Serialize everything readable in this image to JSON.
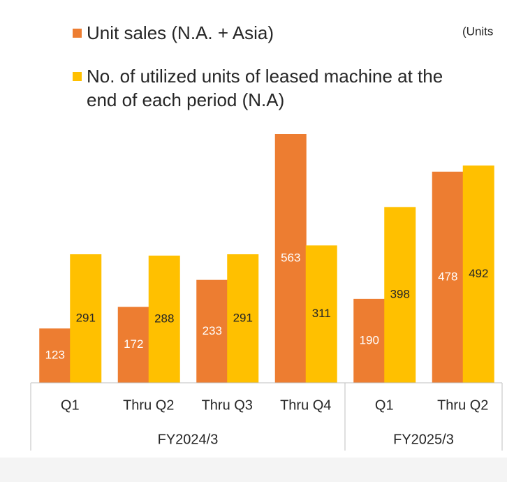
{
  "chart_data": {
    "type": "bar",
    "unit_note": "(Units",
    "groups": [
      {
        "label": "FY2024/3",
        "categories": [
          "Q1",
          "Thru Q2",
          "Thru Q3",
          "Thru Q4"
        ]
      },
      {
        "label": "FY2025/3",
        "categories": [
          "Q1",
          "Thru Q2"
        ]
      }
    ],
    "series": [
      {
        "name": "Unit sales (N.A. + Asia)",
        "color": "#ed7d31",
        "label_color": "#ffffff",
        "values": [
          123,
          172,
          233,
          563,
          190,
          478
        ]
      },
      {
        "name": "No. of utilized units of leased machine at the end of each period (N.A)",
        "color": "#ffc000",
        "label_color": "#262626",
        "values": [
          291,
          288,
          291,
          311,
          398,
          492
        ]
      }
    ]
  }
}
